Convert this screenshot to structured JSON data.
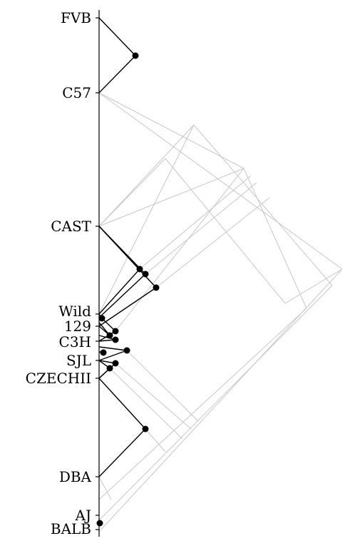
{
  "diagram": {
    "leaves": [
      {
        "id": "FVB",
        "label": "FVB"
      },
      {
        "id": "C57",
        "label": "C57"
      },
      {
        "id": "CAST",
        "label": "CAST"
      },
      {
        "id": "Wild",
        "label": "Wild"
      },
      {
        "id": "129",
        "label": "129"
      },
      {
        "id": "C3H",
        "label": "C3H"
      },
      {
        "id": "SJL",
        "label": "SJL"
      },
      {
        "id": "CZECHII",
        "label": "CZECHII"
      },
      {
        "id": "DBA",
        "label": "DBA"
      },
      {
        "id": "AJ",
        "label": "AJ"
      },
      {
        "id": "BALB",
        "label": "BALB"
      }
    ],
    "colors": {
      "axis": "#000000",
      "edges": "#000000",
      "nodes": "#000000",
      "guides": "#c8c8c8",
      "background": "#ffffff"
    }
  }
}
